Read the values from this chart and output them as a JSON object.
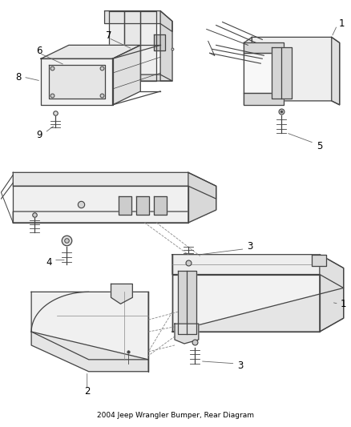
{
  "bg_color": "#ffffff",
  "line_color": "#444444",
  "text_color": "#000000",
  "label_fontsize": 8.5,
  "lw": 0.9
}
